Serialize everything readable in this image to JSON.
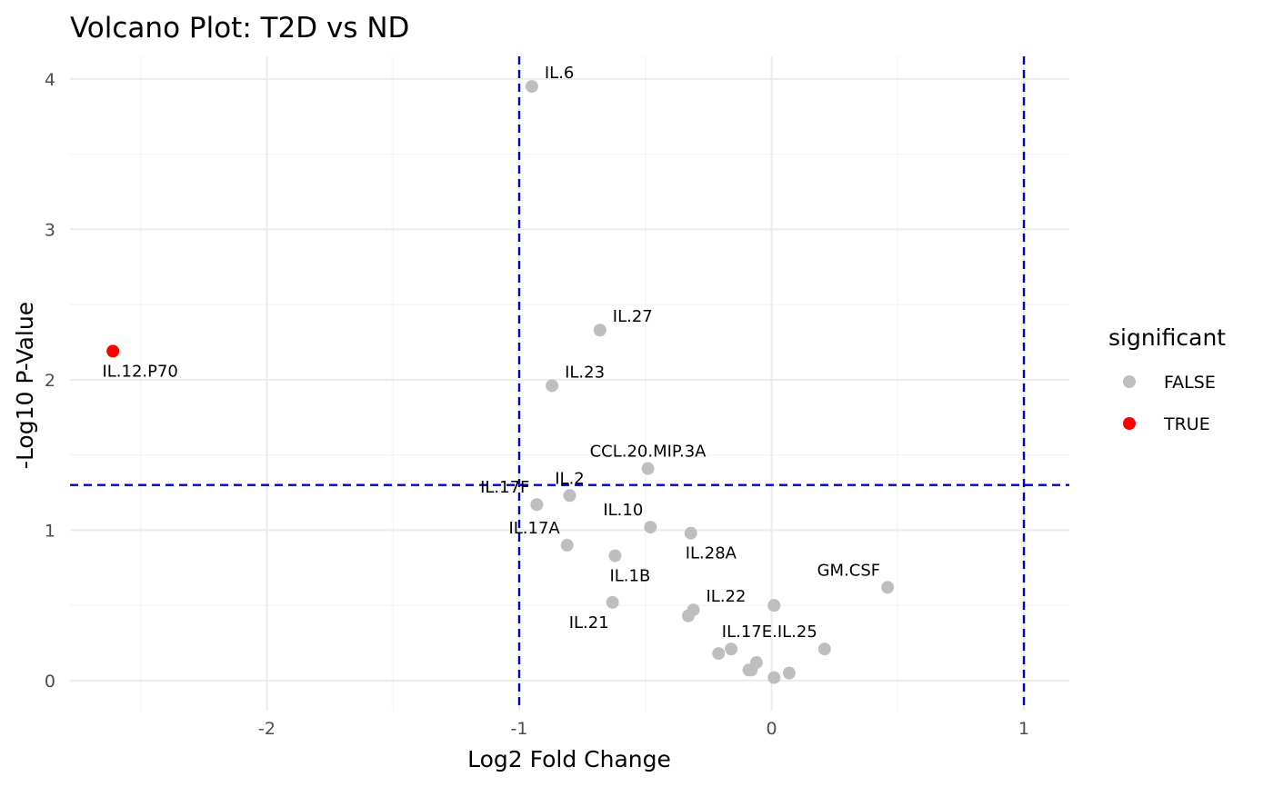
{
  "chart_data": {
    "type": "scatter",
    "title": "Volcano Plot: T2D vs ND",
    "xlabel": "Log2 Fold Change",
    "ylabel": "-Log10 P-Value",
    "xlim": [
      -2.78,
      1.18
    ],
    "ylim": [
      -0.2,
      4.15
    ],
    "x_ticks": [
      -2,
      -1,
      0,
      1
    ],
    "y_ticks": [
      0,
      1,
      2,
      3,
      4
    ],
    "x_tick_labels": [
      "-2",
      "-1",
      "0",
      "1"
    ],
    "y_tick_labels": [
      "0",
      "1",
      "2",
      "3",
      "4"
    ],
    "grid": true,
    "thresholds": {
      "x": [
        -1,
        1
      ],
      "y": 1.3,
      "color": "#0000cc"
    },
    "legend": {
      "title": "significant",
      "placement": "right",
      "entries": [
        {
          "label": "FALSE",
          "color": "#bebebe"
        },
        {
          "label": "TRUE",
          "color": "#ff0000"
        }
      ]
    },
    "points": [
      {
        "x": -2.61,
        "y": 2.19,
        "significant": true,
        "label": "IL.12.P70",
        "label_pos": "below"
      },
      {
        "x": -0.95,
        "y": 3.95,
        "significant": false,
        "label": "IL.6",
        "label_pos": "above-right"
      },
      {
        "x": -0.68,
        "y": 2.33,
        "significant": false,
        "label": "IL.27",
        "label_pos": "above-right"
      },
      {
        "x": -0.87,
        "y": 1.96,
        "significant": false,
        "label": "IL.23",
        "label_pos": "above-right"
      },
      {
        "x": -0.49,
        "y": 1.41,
        "significant": false,
        "label": "CCL.20.MIP.3A",
        "label_pos": "above"
      },
      {
        "x": -0.8,
        "y": 1.23,
        "significant": false,
        "label": "IL.2",
        "label_pos": "above"
      },
      {
        "x": -0.93,
        "y": 1.17,
        "significant": false,
        "label": "IL.17F",
        "label_pos": "above-left"
      },
      {
        "x": -0.48,
        "y": 1.02,
        "significant": false,
        "label": "IL.10",
        "label_pos": "above-left"
      },
      {
        "x": -0.32,
        "y": 0.98,
        "significant": false,
        "label": "IL.28A",
        "label_pos": "below-right"
      },
      {
        "x": -0.81,
        "y": 0.9,
        "significant": false,
        "label": "IL.17A",
        "label_pos": "above-left"
      },
      {
        "x": -0.62,
        "y": 0.83,
        "significant": false,
        "label": "IL.1B",
        "label_pos": "below-right"
      },
      {
        "x": 0.46,
        "y": 0.62,
        "significant": false,
        "label": "GM.CSF",
        "label_pos": "above-left"
      },
      {
        "x": -0.63,
        "y": 0.52,
        "significant": false,
        "label": "IL.21",
        "label_pos": "below-left"
      },
      {
        "x": -0.31,
        "y": 0.47,
        "significant": false,
        "label": "IL.22",
        "label_pos": "above-right"
      },
      {
        "x": -0.33,
        "y": 0.43,
        "significant": false,
        "label": "",
        "label_pos": "none"
      },
      {
        "x": 0.01,
        "y": 0.5,
        "significant": false,
        "label": "",
        "label_pos": "none"
      },
      {
        "x": 0.21,
        "y": 0.21,
        "significant": false,
        "label": "IL.17E.IL.25",
        "label_pos": "above-left"
      },
      {
        "x": -0.16,
        "y": 0.21,
        "significant": false,
        "label": "",
        "label_pos": "none"
      },
      {
        "x": -0.21,
        "y": 0.18,
        "significant": false,
        "label": "",
        "label_pos": "none"
      },
      {
        "x": -0.06,
        "y": 0.12,
        "significant": false,
        "label": "",
        "label_pos": "none"
      },
      {
        "x": -0.09,
        "y": 0.07,
        "significant": false,
        "label": "",
        "label_pos": "none"
      },
      {
        "x": -0.08,
        "y": 0.07,
        "significant": false,
        "label": "",
        "label_pos": "none"
      },
      {
        "x": 0.07,
        "y": 0.05,
        "significant": false,
        "label": "",
        "label_pos": "none"
      },
      {
        "x": 0.01,
        "y": 0.02,
        "significant": false,
        "label": "",
        "label_pos": "none"
      }
    ]
  }
}
